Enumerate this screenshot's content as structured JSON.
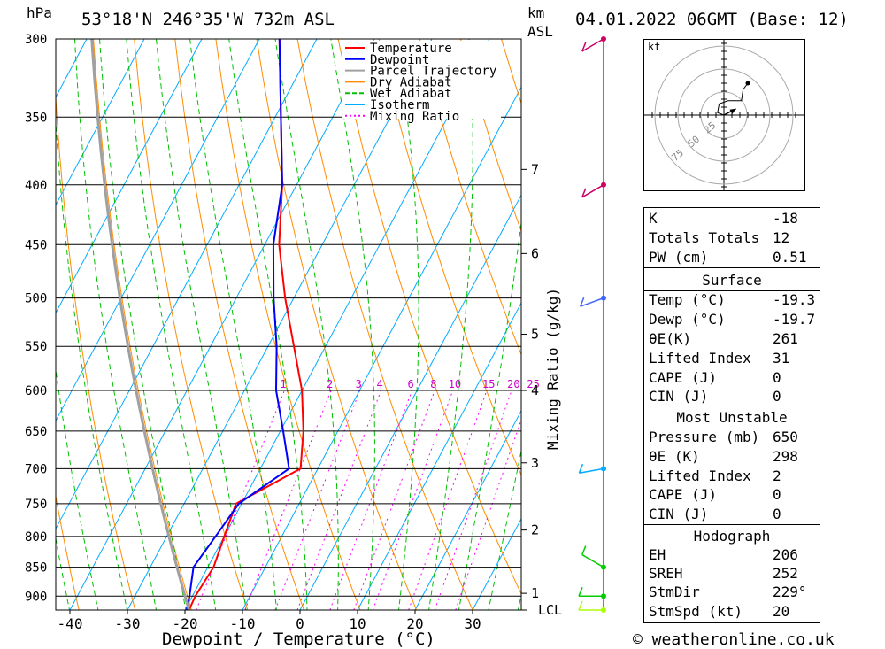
{
  "header": {
    "location": "53°18'N  246°35'W  732m  ASL",
    "datetime": "04.01.2022  06GMT  (Base: 12)",
    "hpa_label": "hPa",
    "km_label": "km",
    "asl_label": "ASL"
  },
  "footer": {
    "credit": "© weatheronline.co.uk"
  },
  "legend": [
    {
      "label": "Temperature",
      "color": "#ff0000",
      "style": "solid"
    },
    {
      "label": "Dewpoint",
      "color": "#0000ff",
      "style": "solid"
    },
    {
      "label": "Parcel Trajectory",
      "color": "#a0a0a0",
      "style": "solid"
    },
    {
      "label": "Dry Adiabat",
      "color": "#ff8c00",
      "style": "solid"
    },
    {
      "label": "Wet Adiabat",
      "color": "#00c000",
      "style": "dashed"
    },
    {
      "label": "Isotherm",
      "color": "#00aaff",
      "style": "solid"
    },
    {
      "label": "Mixing Ratio",
      "color": "#ff00ff",
      "style": "dotted"
    }
  ],
  "chart_data": {
    "type": "line",
    "subtype": "skew-T log-P diagram",
    "xlabel": "Dewpoint / Temperature (°C)",
    "ylabel": "hPa",
    "secondary_ylabel": "Mixing Ratio (g/kg)",
    "x_ticks": [
      -40,
      -30,
      -20,
      -10,
      0,
      10,
      20,
      30
    ],
    "pressure_levels": [
      300,
      350,
      400,
      450,
      500,
      550,
      600,
      650,
      700,
      750,
      800,
      850,
      900
    ],
    "km_ticks": [
      {
        "label": "7",
        "pressure": 388
      },
      {
        "label": "6",
        "pressure": 458
      },
      {
        "label": "5",
        "pressure": 537
      },
      {
        "label": "4",
        "pressure": 600
      },
      {
        "label": "3",
        "pressure": 692
      },
      {
        "label": "2",
        "pressure": 790
      },
      {
        "label": "1",
        "pressure": 895
      },
      {
        "label": "LCL",
        "pressure": 925
      }
    ],
    "mixing_ratio_labels": [
      "1",
      "2",
      "3",
      "4",
      "6",
      "8",
      "10",
      "15",
      "20",
      "25"
    ],
    "series": [
      {
        "name": "Temperature",
        "color": "#ff0000",
        "points": [
          [
            300,
            -56.5
          ],
          [
            350,
            -49
          ],
          [
            400,
            -42.5
          ],
          [
            450,
            -37.5
          ],
          [
            500,
            -31.5
          ],
          [
            550,
            -25.5
          ],
          [
            600,
            -20
          ],
          [
            650,
            -16
          ],
          [
            700,
            -13
          ],
          [
            750,
            -21
          ],
          [
            800,
            -20
          ],
          [
            850,
            -19
          ],
          [
            900,
            -19.5
          ],
          [
            925,
            -19.3
          ]
        ]
      },
      {
        "name": "Dewpoint",
        "color": "#0000ff",
        "points": [
          [
            300,
            -56.5
          ],
          [
            350,
            -49
          ],
          [
            400,
            -42.5
          ],
          [
            450,
            -38.5
          ],
          [
            500,
            -33.5
          ],
          [
            550,
            -28.5
          ],
          [
            600,
            -24.5
          ],
          [
            650,
            -19.5
          ],
          [
            700,
            -15
          ],
          [
            750,
            -20.5
          ],
          [
            800,
            -21.5
          ],
          [
            850,
            -22.5
          ],
          [
            900,
            -20.5
          ],
          [
            925,
            -19.7
          ]
        ]
      }
    ],
    "winds": [
      {
        "pressure": 300,
        "color": "#cc0066",
        "dir": 240,
        "barbs": "pennant"
      },
      {
        "pressure": 400,
        "color": "#cc0066",
        "dir": 240,
        "barbs": "pennant"
      },
      {
        "pressure": 500,
        "color": "#4466ff",
        "dir": 250,
        "barbs": "3 full"
      },
      {
        "pressure": 700,
        "color": "#00aaff",
        "dir": 260,
        "barbs": "3 full"
      },
      {
        "pressure": 850,
        "color": "#00cc00",
        "dir": 300,
        "barbs": "1 full"
      },
      {
        "pressure": 900,
        "color": "#00cc00",
        "dir": 270,
        "barbs": "2 full"
      },
      {
        "pressure": 925,
        "color": "#aaff00",
        "dir": 270,
        "barbs": "1 full"
      }
    ],
    "hodograph": {
      "unit": "kt",
      "ring_labels": [
        "25",
        "50",
        "75"
      ],
      "trace": [
        [
          0,
          0
        ],
        [
          -8,
          3
        ],
        [
          -6,
          14
        ],
        [
          5,
          18
        ],
        [
          22,
          18
        ],
        [
          24,
          32
        ],
        [
          30,
          40
        ]
      ],
      "storm_motion": [
        15,
        8
      ]
    }
  },
  "indices": {
    "k_label": "K",
    "k_value": "-18",
    "tt_label": "Totals Totals",
    "tt_value": "12",
    "pw_label": "PW (cm)",
    "pw_value": "0.51"
  },
  "surface": {
    "title": "Surface",
    "temp_label": "Temp (°C)",
    "temp_value": "-19.3",
    "dewp_label": "Dewp (°C)",
    "dewp_value": "-19.7",
    "theta_label": "θE(K)",
    "theta_value": "261",
    "li_label": "Lifted Index",
    "li_value": "31",
    "cape_label": "CAPE (J)",
    "cape_value": "0",
    "cin_label": "CIN (J)",
    "cin_value": "0"
  },
  "most_unstable": {
    "title": "Most Unstable",
    "pressure_label": "Pressure (mb)",
    "pressure_value": "650",
    "theta_label": "θE (K)",
    "theta_value": "298",
    "li_label": "Lifted Index",
    "li_value": "2",
    "cape_label": "CAPE (J)",
    "cape_value": "0",
    "cin_label": "CIN (J)",
    "cin_value": "0"
  },
  "hodograph_stats": {
    "title": "Hodograph",
    "eh_label": "EH",
    "eh_value": "206",
    "sreh_label": "SREH",
    "sreh_value": "252",
    "stmdir_label": "StmDir",
    "stmdir_value": "229°",
    "stmspd_label": "StmSpd (kt)",
    "stmspd_value": "20"
  }
}
